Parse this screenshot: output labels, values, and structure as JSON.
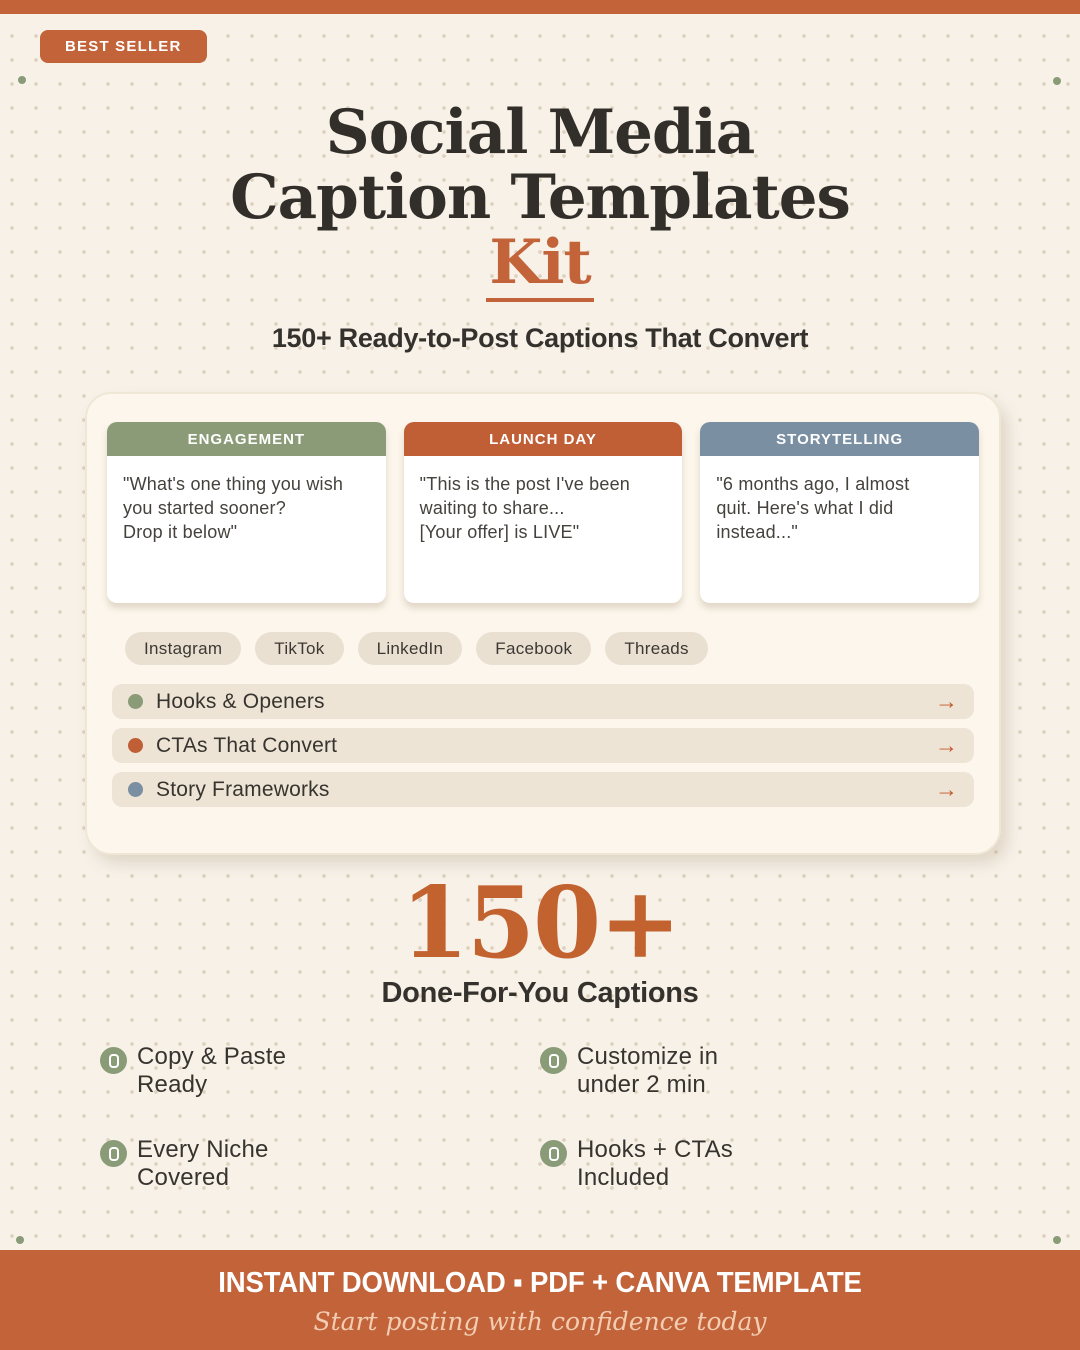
{
  "badge": "BEST SELLER",
  "title": {
    "line1": "Social Media",
    "line2": "Caption Templates",
    "line3": "Kit"
  },
  "subtitle": "150+ Ready-to-Post Captions That Convert",
  "cards": [
    {
      "label": "ENGAGEMENT",
      "color": "#8c9b77",
      "quote": "\"What's one thing you wish\nyou started sooner?\nDrop it below\""
    },
    {
      "label": "LAUNCH DAY",
      "color": "#c05e36",
      "quote": "\"This is the post I've been\nwaiting to share...\n[Your offer] is LIVE\""
    },
    {
      "label": "STORYTELLING",
      "color": "#7b8fa2",
      "quote": "\"6 months ago, I almost\nquit. Here's what I did\ninstead...\""
    }
  ],
  "platforms": [
    {
      "label": "Instagram"
    },
    {
      "label": "TikTok"
    },
    {
      "label": "LinkedIn"
    },
    {
      "label": "Facebook"
    },
    {
      "label": "Threads"
    }
  ],
  "categories": [
    {
      "label": "Hooks & Openers",
      "dot_color": "#8a9b77"
    },
    {
      "label": "CTAs That Convert",
      "dot_color": "#c05e36"
    },
    {
      "label": "Story Frameworks",
      "dot_color": "#7b8fa2"
    }
  ],
  "icons": {
    "arrow_right": "→"
  },
  "stat": {
    "number": "150+",
    "label": "Done-For-You Captions"
  },
  "features": [
    {
      "text": "Copy & Paste\nReady"
    },
    {
      "text": "Customize in\nunder 2 min"
    },
    {
      "text": "Every Niche\nCovered"
    },
    {
      "text": "Hooks + CTAs\nIncluded"
    }
  ],
  "footer": {
    "line1": "INSTANT DOWNLOAD ▪ PDF + CANVA TEMPLATE",
    "line2": "Start posting with confidence today"
  },
  "colors": {
    "accent_orange": "#c2633a",
    "sage_green": "#8a9b77",
    "slate_blue": "#7b8fa2",
    "page_background": "#f7f1e8",
    "main_card_background": "#fcf6ec",
    "row_background": "#ede4d5",
    "pill_background": "#eae0d1",
    "stat_orange": "#c2622f",
    "footer_script_color": "#f2cdb2"
  }
}
